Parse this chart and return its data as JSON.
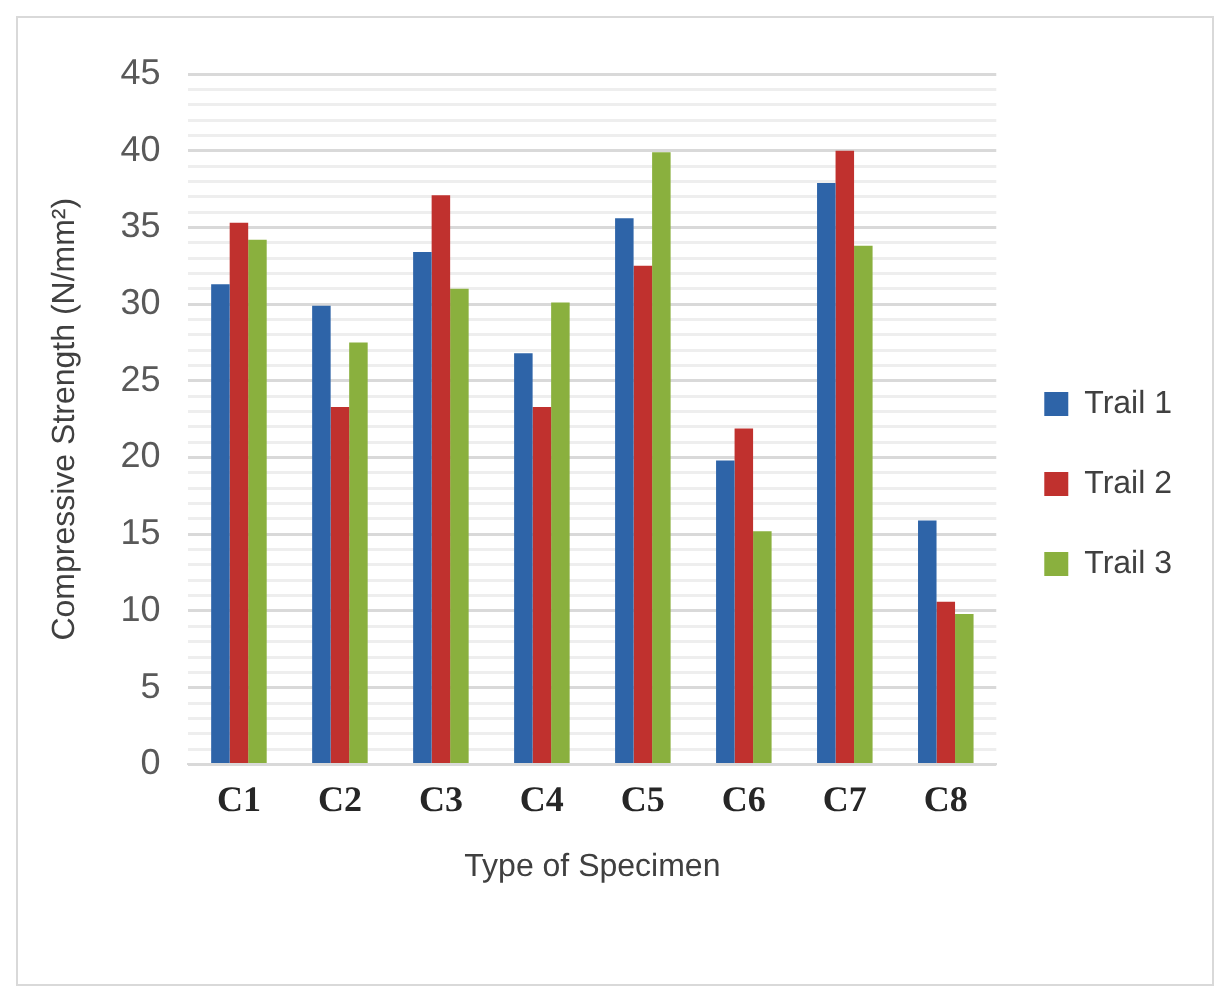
{
  "chart_data": {
    "type": "bar",
    "xlabel": "Type of Specimen",
    "ylabel": "Compressive Strength (N/mm²)",
    "categories": [
      "C1",
      "C2",
      "C3",
      "C4",
      "C5",
      "C6",
      "C7",
      "C8"
    ],
    "series": [
      {
        "name": "Trail 1",
        "color": "#2e64a8",
        "values": [
          31.3,
          29.9,
          33.4,
          26.8,
          35.6,
          19.8,
          37.9,
          15.9
        ]
      },
      {
        "name": "Trail 2",
        "color": "#c0312e",
        "values": [
          35.3,
          23.3,
          37.1,
          23.3,
          32.5,
          21.9,
          40,
          10.6
        ]
      },
      {
        "name": "Trail 3",
        "color": "#8ab03e",
        "values": [
          34.2,
          27.5,
          31,
          30.1,
          39.9,
          15.2,
          33.8,
          9.8
        ]
      }
    ],
    "ylim": [
      0,
      45
    ],
    "yticks": [
      0,
      {
        "value": 1,
        "label": null
      },
      {
        "value": 2,
        "label": null
      },
      {
        "value": 3,
        "label": null
      },
      {
        "value": 4,
        "label": null
      },
      5,
      {
        "value": 6,
        "label": null
      },
      {
        "value": 7,
        "label": null
      },
      {
        "value": 8,
        "label": null
      },
      {
        "value": 9,
        "label": null
      },
      10,
      {
        "value": 11,
        "label": null
      },
      {
        "value": 12,
        "label": null
      },
      {
        "value": 13,
        "label": null
      },
      {
        "value": 14,
        "label": null
      },
      15,
      {
        "value": 16,
        "label": null
      },
      {
        "value": 17,
        "label": null
      },
      {
        "value": 18,
        "label": null
      },
      {
        "value": 19,
        "label": null
      },
      20,
      {
        "value": 21,
        "label": null
      },
      {
        "value": 22,
        "label": null
      },
      {
        "value": 23,
        "label": null
      },
      {
        "value": 24,
        "label": null
      },
      25,
      {
        "value": 26,
        "label": null
      },
      {
        "value": 27,
        "label": null
      },
      {
        "value": 28,
        "label": null
      },
      {
        "value": 29,
        "label": null
      },
      30,
      {
        "value": 31,
        "label": null
      },
      {
        "value": 32,
        "label": null
      },
      {
        "value": 33,
        "label": null
      },
      {
        "value": 34,
        "label": null
      },
      35,
      {
        "value": 36,
        "label": null
      },
      {
        "value": 37,
        "label": null
      },
      {
        "value": 38,
        "label": null
      },
      {
        "value": 39,
        "label": null
      },
      40,
      {
        "value": 41,
        "label": null
      },
      {
        "value": 42,
        "label": null
      },
      {
        "value": 43,
        "label": null
      },
      {
        "value": 44,
        "label": null
      },
      45
    ],
    "grid": "y",
    "legend": "right"
  }
}
